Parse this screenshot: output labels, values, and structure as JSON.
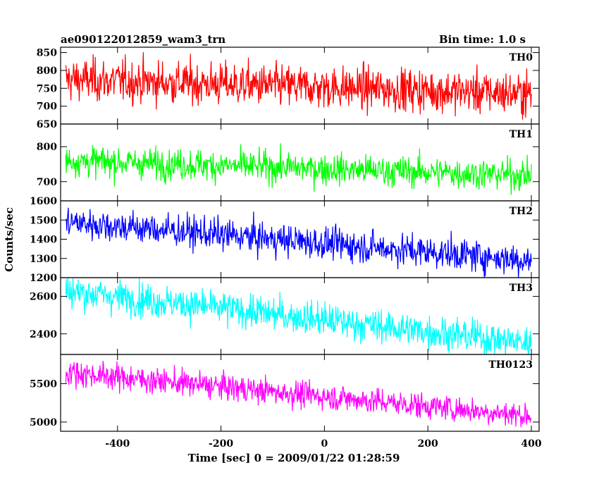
{
  "header": {
    "title": "ae090122012859_wam3_trn",
    "bin_time": "Bin time: 1.0 s"
  },
  "chart_data": {
    "type": "line",
    "xlabel": "Time [sec] 0 = 2009/01/22 01:28:59",
    "ylabel": "Counts/sec",
    "xlim": [
      -510,
      415
    ],
    "xticks": [
      -400,
      -200,
      0,
      200,
      400
    ],
    "grid": false,
    "legend": "none",
    "panels": [
      {
        "name": "TH0",
        "color": "#ff0000",
        "ylim": [
          650,
          865
        ],
        "yticks": [
          650,
          700,
          750,
          800,
          850
        ],
        "x_range": [
          -500,
          400
        ],
        "trend_start": 775,
        "trend_end": 735,
        "noise_sigma": 30
      },
      {
        "name": "TH1",
        "color": "#00ff00",
        "ylim": [
          645,
          865
        ],
        "yticks": [
          700,
          800
        ],
        "x_range": [
          -500,
          400
        ],
        "trend_start": 760,
        "trend_end": 718,
        "noise_sigma": 22
      },
      {
        "name": "TH2",
        "color": "#0000ff",
        "ylim": [
          1200,
          1600
        ],
        "yticks": [
          1200,
          1300,
          1400,
          1500,
          1600
        ],
        "x_range": [
          -500,
          400
        ],
        "trend_start": 1490,
        "trend_end": 1290,
        "noise_sigma": 42
      },
      {
        "name": "TH3",
        "color": "#00ffff",
        "ylim": [
          2290,
          2700
        ],
        "yticks": [
          2400,
          2600
        ],
        "x_range": [
          -500,
          400
        ],
        "trend_start": 2630,
        "trend_end": 2350,
        "noise_sigma": 45
      },
      {
        "name": "TH0123",
        "color": "#ff00ff",
        "ylim": [
          4880,
          5880
        ],
        "yticks": [
          5000,
          5500
        ],
        "x_range": [
          -500,
          400
        ],
        "trend_start": 5650,
        "trend_end": 5080,
        "noise_sigma": 85
      }
    ]
  }
}
